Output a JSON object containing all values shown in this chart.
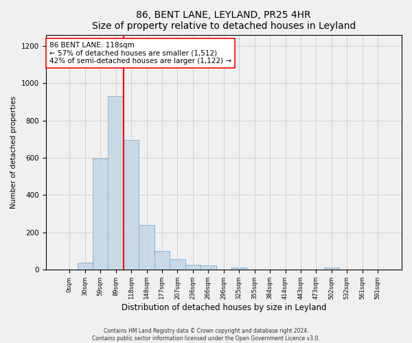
{
  "title": "86, BENT LANE, LEYLAND, PR25 4HR",
  "subtitle": "Size of property relative to detached houses in Leyland",
  "xlabel": "Distribution of detached houses by size in Leyland",
  "ylabel": "Number of detached properties",
  "bar_labels": [
    "0sqm",
    "30sqm",
    "59sqm",
    "89sqm",
    "118sqm",
    "148sqm",
    "177sqm",
    "207sqm",
    "236sqm",
    "266sqm",
    "296sqm",
    "325sqm",
    "355sqm",
    "384sqm",
    "414sqm",
    "443sqm",
    "473sqm",
    "502sqm",
    "532sqm",
    "561sqm",
    "591sqm"
  ],
  "bar_values": [
    0,
    35,
    595,
    930,
    695,
    240,
    100,
    55,
    25,
    20,
    0,
    12,
    0,
    0,
    0,
    0,
    0,
    10,
    0,
    0,
    0
  ],
  "bar_color": "#c8d9e8",
  "bar_edgecolor": "#7bafd4",
  "annotation_title": "86 BENT LANE: 118sqm",
  "annotation_line1": "← 57% of detached houses are smaller (1,512)",
  "annotation_line2": "42% of semi-detached houses are larger (1,122) →",
  "ylim": [
    0,
    1260
  ],
  "yticks": [
    0,
    200,
    400,
    600,
    800,
    1000,
    1200
  ],
  "redline_x": 3.5,
  "footnote1": "Contains HM Land Registry data © Crown copyright and database right 2024.",
  "footnote2": "Contains public sector information licensed under the Open Government Licence v3.0.",
  "background_color": "#f0f0f0",
  "grid_color": "#d0d0d0"
}
